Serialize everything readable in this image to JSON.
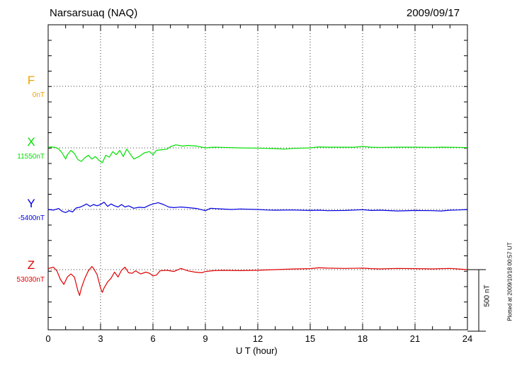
{
  "header": {
    "station": "Narsarsuaq (NAQ)",
    "date": "2009/09/17"
  },
  "footer": {
    "plotted": "Plotted at 2009/10/18 00:57 UT"
  },
  "chart_data": {
    "type": "line",
    "xlabel": "U T (hour)",
    "xlim": [
      0,
      24
    ],
    "xticks": [
      0,
      3,
      6,
      9,
      12,
      15,
      18,
      21,
      24
    ],
    "xtick_labels": [
      "0",
      "3",
      "6",
      "9",
      "12",
      "15",
      "18",
      "21",
      "24"
    ],
    "grid": true,
    "scale_bar": {
      "label": "500 nT",
      "value_nT": 500
    },
    "series": [
      {
        "name": "F",
        "baseline_label": "0nT",
        "color": "#f0a000",
        "points": []
      },
      {
        "name": "X",
        "baseline_label": "11550nT",
        "color": "#00e000",
        "points": [
          [
            0,
            6
          ],
          [
            0.2,
            8
          ],
          [
            0.4,
            4
          ],
          [
            0.6,
            -8
          ],
          [
            0.8,
            -40
          ],
          [
            1.0,
            -90
          ],
          [
            1.1,
            -55
          ],
          [
            1.3,
            -20
          ],
          [
            1.5,
            -45
          ],
          [
            1.7,
            -95
          ],
          [
            1.9,
            -110
          ],
          [
            2.1,
            -80
          ],
          [
            2.3,
            -60
          ],
          [
            2.5,
            -90
          ],
          [
            2.7,
            -70
          ],
          [
            2.9,
            -100
          ],
          [
            3.1,
            -120
          ],
          [
            3.3,
            -60
          ],
          [
            3.5,
            -75
          ],
          [
            3.7,
            -30
          ],
          [
            3.9,
            -55
          ],
          [
            4.1,
            -20
          ],
          [
            4.3,
            -70
          ],
          [
            4.5,
            -10
          ],
          [
            4.7,
            -50
          ],
          [
            4.9,
            -90
          ],
          [
            5.2,
            -70
          ],
          [
            5.5,
            -40
          ],
          [
            5.8,
            -30
          ],
          [
            6.0,
            -55
          ],
          [
            6.2,
            -20
          ],
          [
            6.5,
            -15
          ],
          [
            6.8,
            -10
          ],
          [
            7.0,
            10
          ],
          [
            7.3,
            25
          ],
          [
            7.7,
            15
          ],
          [
            8.0,
            20
          ],
          [
            8.5,
            15
          ],
          [
            9.0,
            0
          ],
          [
            9.5,
            6
          ],
          [
            10,
            4
          ],
          [
            11,
            0
          ],
          [
            12,
            -2
          ],
          [
            13,
            -6
          ],
          [
            13.5,
            -10
          ],
          [
            14,
            -4
          ],
          [
            14.5,
            -2
          ],
          [
            15,
            0
          ],
          [
            15.5,
            8
          ],
          [
            16,
            6
          ],
          [
            17,
            6
          ],
          [
            17.5,
            5
          ],
          [
            18,
            12
          ],
          [
            18.5,
            5
          ],
          [
            19,
            4
          ],
          [
            20,
            6
          ],
          [
            21,
            6
          ],
          [
            22,
            4
          ],
          [
            22.5,
            6
          ],
          [
            23,
            5
          ],
          [
            23.5,
            4
          ],
          [
            24,
            2
          ]
        ]
      },
      {
        "name": "Y",
        "baseline_label": "-5400nT",
        "color": "#0000e0",
        "points": [
          [
            0,
            0
          ],
          [
            0.3,
            -5
          ],
          [
            0.6,
            8
          ],
          [
            0.8,
            -15
          ],
          [
            1.0,
            -25
          ],
          [
            1.2,
            -10
          ],
          [
            1.4,
            -20
          ],
          [
            1.6,
            12
          ],
          [
            1.8,
            18
          ],
          [
            2.0,
            30
          ],
          [
            2.2,
            45
          ],
          [
            2.4,
            25
          ],
          [
            2.6,
            40
          ],
          [
            2.8,
            30
          ],
          [
            3.0,
            40
          ],
          [
            3.2,
            60
          ],
          [
            3.4,
            25
          ],
          [
            3.6,
            45
          ],
          [
            3.8,
            30
          ],
          [
            4.0,
            20
          ],
          [
            4.2,
            40
          ],
          [
            4.4,
            20
          ],
          [
            4.6,
            30
          ],
          [
            4.9,
            10
          ],
          [
            5.2,
            18
          ],
          [
            5.5,
            15
          ],
          [
            5.8,
            35
          ],
          [
            6.0,
            45
          ],
          [
            6.3,
            55
          ],
          [
            6.6,
            40
          ],
          [
            6.9,
            20
          ],
          [
            7.2,
            15
          ],
          [
            7.6,
            20
          ],
          [
            8.0,
            15
          ],
          [
            8.5,
            8
          ],
          [
            9.0,
            -10
          ],
          [
            9.3,
            10
          ],
          [
            9.8,
            5
          ],
          [
            10.5,
            0
          ],
          [
            11,
            4
          ],
          [
            12,
            0
          ],
          [
            12.5,
            -4
          ],
          [
            13,
            -6
          ],
          [
            14,
            -4
          ],
          [
            15,
            -8
          ],
          [
            15.5,
            -6
          ],
          [
            16,
            -10
          ],
          [
            17,
            -8
          ],
          [
            18,
            -2
          ],
          [
            18.5,
            -8
          ],
          [
            19,
            -6
          ],
          [
            20,
            -12
          ],
          [
            21,
            -8
          ],
          [
            22,
            -10
          ],
          [
            22.5,
            -12
          ],
          [
            23,
            -6
          ],
          [
            23.5,
            -4
          ],
          [
            24,
            0
          ]
        ]
      },
      {
        "name": "Z",
        "baseline_label": "53030nT",
        "color": "#e00000",
        "points": [
          [
            0,
            8
          ],
          [
            0.3,
            20
          ],
          [
            0.5,
            -10
          ],
          [
            0.7,
            -80
          ],
          [
            0.9,
            -120
          ],
          [
            1.1,
            -60
          ],
          [
            1.3,
            -35
          ],
          [
            1.5,
            -60
          ],
          [
            1.7,
            -170
          ],
          [
            1.8,
            -210
          ],
          [
            1.9,
            -150
          ],
          [
            2.1,
            -70
          ],
          [
            2.3,
            -10
          ],
          [
            2.5,
            25
          ],
          [
            2.6,
            10
          ],
          [
            2.8,
            -40
          ],
          [
            3.0,
            -150
          ],
          [
            3.1,
            -185
          ],
          [
            3.2,
            -150
          ],
          [
            3.4,
            -100
          ],
          [
            3.6,
            -70
          ],
          [
            3.8,
            -20
          ],
          [
            4.0,
            -60
          ],
          [
            4.2,
            -5
          ],
          [
            4.4,
            20
          ],
          [
            4.6,
            -25
          ],
          [
            4.8,
            -30
          ],
          [
            5.0,
            -10
          ],
          [
            5.3,
            -35
          ],
          [
            5.6,
            -20
          ],
          [
            5.8,
            -30
          ],
          [
            6.0,
            -50
          ],
          [
            6.2,
            -45
          ],
          [
            6.4,
            -10
          ],
          [
            6.8,
            -5
          ],
          [
            7.2,
            -15
          ],
          [
            7.6,
            10
          ],
          [
            8.0,
            -10
          ],
          [
            8.4,
            -20
          ],
          [
            8.8,
            -25
          ],
          [
            9.0,
            -15
          ],
          [
            9.5,
            -8
          ],
          [
            10,
            -6
          ],
          [
            11,
            -8
          ],
          [
            12,
            -5
          ],
          [
            13,
            0
          ],
          [
            14,
            5
          ],
          [
            15,
            8
          ],
          [
            15.5,
            15
          ],
          [
            16,
            12
          ],
          [
            17,
            10
          ],
          [
            18,
            12
          ],
          [
            18.5,
            8
          ],
          [
            19,
            6
          ],
          [
            20,
            10
          ],
          [
            21,
            8
          ],
          [
            22,
            6
          ],
          [
            23,
            10
          ],
          [
            23.5,
            5
          ],
          [
            24,
            0
          ]
        ]
      }
    ]
  }
}
